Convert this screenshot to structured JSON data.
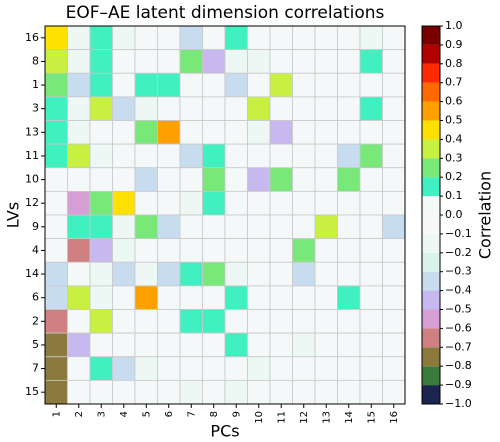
{
  "chart_data": {
    "type": "heatmap",
    "title": "EOF–AE latent dimension correlations",
    "x_label": "PCs",
    "y_label": "LVs",
    "colorbar_label": "Correlation",
    "x_categories": [
      "1",
      "2",
      "3",
      "4",
      "5",
      "6",
      "7",
      "8",
      "9",
      "10",
      "11",
      "12",
      "13",
      "14",
      "15",
      "16"
    ],
    "y_categories": [
      "16",
      "8",
      "1",
      "3",
      "13",
      "11",
      "10",
      "12",
      "9",
      "4",
      "14",
      "6",
      "2",
      "5",
      "7",
      "15"
    ],
    "values": [
      [
        0.45,
        -0.15,
        0.15,
        -0.15,
        0,
        0,
        -0.35,
        0,
        0.15,
        0,
        0,
        0,
        0,
        0,
        -0.15,
        0
      ],
      [
        0.35,
        -0.15,
        0.15,
        0,
        0,
        0,
        0.25,
        -0.45,
        -0.15,
        -0.15,
        0,
        0,
        0,
        0,
        0.15,
        0
      ],
      [
        0.25,
        -0.35,
        0.15,
        0,
        0.15,
        0.15,
        0,
        0,
        -0.35,
        0,
        0.35,
        0,
        0,
        0,
        0,
        0
      ],
      [
        0.15,
        -0.15,
        0.35,
        -0.35,
        -0.15,
        0,
        0,
        0,
        0,
        0.35,
        0,
        0,
        0,
        0,
        0.15,
        0
      ],
      [
        0.15,
        -0.15,
        0,
        0,
        0.25,
        0.55,
        0,
        0,
        0,
        -0.15,
        -0.45,
        0,
        0,
        0,
        0,
        0
      ],
      [
        0.15,
        0.35,
        -0.15,
        0,
        0,
        0,
        -0.35,
        0.15,
        0,
        0,
        0,
        0,
        0,
        -0.35,
        0.25,
        0
      ],
      [
        0,
        0,
        0,
        0,
        -0.35,
        0,
        0,
        0.25,
        0,
        -0.45,
        0.25,
        0,
        0,
        0.25,
        0,
        0
      ],
      [
        0,
        -0.55,
        0.25,
        0.45,
        0,
        0,
        -0.15,
        0.15,
        0,
        0,
        0,
        0,
        0,
        0,
        0,
        0
      ],
      [
        0,
        0.15,
        0.15,
        -0.15,
        0.25,
        -0.35,
        0,
        0,
        0,
        0,
        0,
        0,
        0.35,
        0,
        0,
        -0.35
      ],
      [
        0,
        -0.65,
        -0.45,
        -0.15,
        0,
        0,
        0,
        0,
        0,
        0,
        0,
        0.25,
        0,
        0,
        0,
        0
      ],
      [
        -0.35,
        0,
        -0.15,
        -0.35,
        -0.15,
        -0.35,
        0.15,
        0.25,
        -0.15,
        0,
        0,
        -0.35,
        0,
        0,
        0,
        0
      ],
      [
        -0.35,
        0.35,
        -0.15,
        0,
        0.55,
        0,
        0,
        0,
        0.15,
        0,
        0,
        0,
        0,
        0.15,
        0,
        0
      ],
      [
        -0.65,
        0,
        0.35,
        0,
        0,
        0,
        0.15,
        0.15,
        0,
        0,
        0,
        0,
        0,
        0,
        0,
        0
      ],
      [
        -0.75,
        -0.45,
        0,
        0,
        0,
        0,
        0,
        0,
        0.15,
        0,
        0,
        -0.15,
        0,
        0,
        0,
        0
      ],
      [
        -0.75,
        0,
        0.15,
        -0.35,
        -0.15,
        0,
        0,
        0,
        0,
        -0.15,
        0,
        0,
        0,
        0,
        0,
        0
      ],
      [
        -0.75,
        0,
        0,
        0,
        0,
        0,
        -0.15,
        0,
        -0.15,
        0,
        0,
        0,
        0,
        0,
        0,
        0
      ]
    ],
    "zlim": [
      -1,
      1
    ],
    "zticks": [
      {
        "value": -1,
        "label": "−1.0"
      },
      {
        "value": -0.9,
        "label": "−0.9"
      },
      {
        "value": -0.8,
        "label": "−0.8"
      },
      {
        "value": -0.7,
        "label": "−0.7"
      },
      {
        "value": -0.6,
        "label": "−0.6"
      },
      {
        "value": -0.5,
        "label": "−0.5"
      },
      {
        "value": -0.4,
        "label": "−0.4"
      },
      {
        "value": -0.3,
        "label": "−0.3"
      },
      {
        "value": -0.2,
        "label": "−0.2"
      },
      {
        "value": -0.1,
        "label": "−0.1"
      },
      {
        "value": 0,
        "label": "0.0"
      },
      0.1,
      0.2,
      0.3,
      0.4,
      0.5,
      0.6,
      0.7,
      0.8,
      0.9,
      {
        "value": 1,
        "label": "1.0"
      }
    ],
    "colors": [
      "#1c2450",
      "#3a7a3a",
      "#8c7a3c",
      "#d08080",
      "#d6a0d6",
      "#c8b8f0",
      "#c8dcf0",
      "#d8f4ea",
      "#edf7f3",
      "#f7f7f7",
      "#f4f8f8",
      "#40f0c0",
      "#78e878",
      "#c8f040",
      "#ffe000",
      "#ffa000",
      "#ff6a00",
      "#ff2a00",
      "#b30000",
      "#7a0000"
    ]
  }
}
